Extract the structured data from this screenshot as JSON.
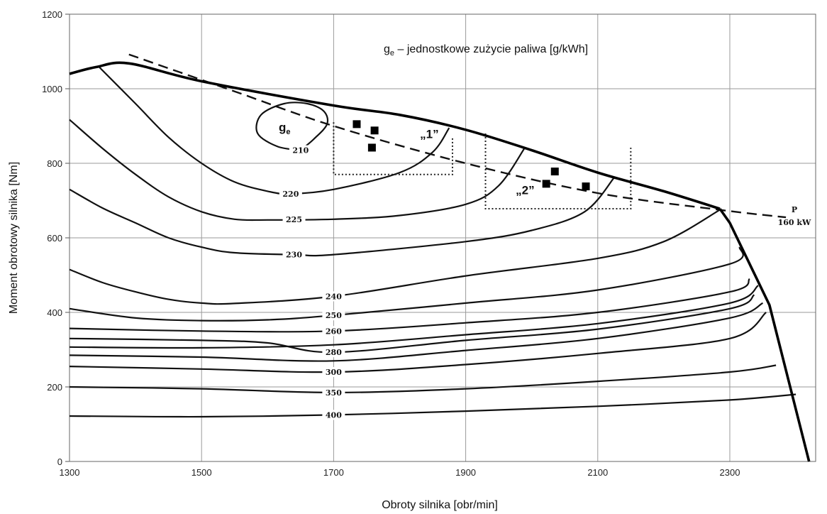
{
  "chart_data": {
    "type": "line",
    "xlabel": "Obroty silnika [obr/min]",
    "ylabel": "Moment obrotowy silnika [Nm]",
    "xlim": [
      1300,
      2430
    ],
    "ylim": [
      0,
      1200
    ],
    "x_ticks": [
      "1300",
      "1500",
      "1700",
      "1900",
      "2100",
      "2300"
    ],
    "y_ticks": [
      "0",
      "200",
      "400",
      "600",
      "800",
      "1000",
      "1200"
    ],
    "grid": true,
    "annotation_title": "jednostkowe zużycie paliwa [g/kWh]",
    "annotation_symbol": "g",
    "annotation_subscript": "e",
    "annotation_dash": " – ",
    "ge_label": "g",
    "ge_label_sub": "e",
    "power_label": "P",
    "power_value": "160 kW",
    "full_load_curve": [
      [
        1300,
        1040
      ],
      [
        1340,
        1058
      ],
      [
        1390,
        1068
      ],
      [
        1500,
        1020
      ],
      [
        1700,
        955
      ],
      [
        1800,
        930
      ],
      [
        1900,
        890
      ],
      [
        2000,
        835
      ],
      [
        2100,
        775
      ],
      [
        2200,
        725
      ],
      [
        2285,
        678
      ],
      [
        2300,
        640
      ],
      [
        2360,
        420
      ],
      [
        2420,
        0
      ]
    ],
    "power_curve": [
      [
        1390,
        1092
      ],
      [
        1550,
        993
      ],
      [
        1700,
        900
      ],
      [
        1900,
        800
      ],
      [
        2100,
        720
      ],
      [
        2285,
        675
      ],
      [
        2385,
        655
      ]
    ],
    "isolines": [
      {
        "label": "210",
        "label_x": 1650,
        "label_y": 835,
        "points": [
          [
            1650,
            835
          ],
          [
            1615,
            845
          ],
          [
            1585,
            880
          ],
          [
            1590,
            930
          ],
          [
            1625,
            960
          ],
          [
            1660,
            960
          ],
          [
            1685,
            940
          ],
          [
            1690,
            905
          ],
          [
            1670,
            865
          ],
          [
            1650,
            835
          ]
        ]
      },
      {
        "label": "220",
        "label_x": 1635,
        "label_y": 718,
        "points": [
          [
            1345,
            1058
          ],
          [
            1400,
            960
          ],
          [
            1450,
            870
          ],
          [
            1500,
            800
          ],
          [
            1550,
            750
          ],
          [
            1600,
            725
          ],
          [
            1635,
            718
          ],
          [
            1700,
            730
          ],
          [
            1800,
            775
          ],
          [
            1850,
            830
          ],
          [
            1875,
            895
          ]
        ]
      },
      {
        "label": "225",
        "label_x": 1640,
        "label_y": 650,
        "points": [
          [
            1300,
            917
          ],
          [
            1350,
            840
          ],
          [
            1400,
            770
          ],
          [
            1450,
            710
          ],
          [
            1500,
            670
          ],
          [
            1550,
            650
          ],
          [
            1600,
            648
          ],
          [
            1700,
            650
          ],
          [
            1800,
            660
          ],
          [
            1900,
            690
          ],
          [
            1950,
            740
          ],
          [
            1990,
            843
          ]
        ]
      },
      {
        "label": "230",
        "label_x": 1640,
        "label_y": 555,
        "points": [
          [
            1300,
            730
          ],
          [
            1350,
            680
          ],
          [
            1400,
            640
          ],
          [
            1450,
            600
          ],
          [
            1500,
            575
          ],
          [
            1550,
            560
          ],
          [
            1640,
            555
          ],
          [
            1700,
            555
          ],
          [
            1900,
            590
          ],
          [
            2000,
            620
          ],
          [
            2080,
            670
          ],
          [
            2125,
            762
          ]
        ]
      },
      {
        "label": "240",
        "label_x": 1700,
        "label_y": 443,
        "points": [
          [
            1300,
            515
          ],
          [
            1350,
            480
          ],
          [
            1400,
            455
          ],
          [
            1450,
            435
          ],
          [
            1500,
            425
          ],
          [
            1550,
            424
          ],
          [
            1700,
            443
          ],
          [
            1900,
            498
          ],
          [
            2100,
            545
          ],
          [
            2200,
            590
          ],
          [
            2285,
            675
          ]
        ]
      },
      {
        "label": "250",
        "label_x": 1700,
        "label_y": 392,
        "points": [
          [
            1300,
            410
          ],
          [
            1400,
            385
          ],
          [
            1500,
            378
          ],
          [
            1600,
            380
          ],
          [
            1700,
            392
          ],
          [
            1900,
            425
          ],
          [
            2100,
            460
          ],
          [
            2300,
            530
          ],
          [
            2315,
            575
          ]
        ]
      },
      {
        "label": "260",
        "label_x": 1700,
        "label_y": 350,
        "points": [
          [
            1300,
            357
          ],
          [
            1500,
            350
          ],
          [
            1700,
            350
          ],
          [
            1900,
            372
          ],
          [
            2100,
            400
          ],
          [
            2300,
            455
          ],
          [
            2330,
            490
          ]
        ]
      },
      {
        "label": "280",
        "label_x": 1700,
        "label_y": 293,
        "points": [
          [
            1300,
            330
          ],
          [
            1500,
            325
          ],
          [
            1600,
            318
          ],
          [
            1700,
            293
          ],
          [
            1900,
            325
          ],
          [
            2100,
            355
          ],
          [
            2300,
            410
          ],
          [
            2337,
            447
          ]
        ]
      },
      {
        "label": "",
        "label_x": 1700,
        "label_y": 313,
        "points": [
          [
            1300,
            307
          ],
          [
            1500,
            305
          ],
          [
            1700,
            313
          ],
          [
            1900,
            340
          ],
          [
            2100,
            370
          ],
          [
            2300,
            425
          ],
          [
            2343,
            472
          ]
        ]
      },
      {
        "label": "",
        "label_x": 1700,
        "label_y": 270,
        "points": [
          [
            1300,
            285
          ],
          [
            1500,
            280
          ],
          [
            1700,
            270
          ],
          [
            1900,
            298
          ],
          [
            2100,
            330
          ],
          [
            2300,
            385
          ],
          [
            2350,
            425
          ]
        ]
      },
      {
        "label": "300",
        "label_x": 1700,
        "label_y": 240,
        "points": [
          [
            1300,
            255
          ],
          [
            1500,
            248
          ],
          [
            1700,
            240
          ],
          [
            1900,
            260
          ],
          [
            2100,
            290
          ],
          [
            2300,
            330
          ],
          [
            2355,
            400
          ]
        ]
      },
      {
        "label": "350",
        "label_x": 1700,
        "label_y": 185,
        "points": [
          [
            1300,
            200
          ],
          [
            1500,
            195
          ],
          [
            1700,
            185
          ],
          [
            1900,
            195
          ],
          [
            2100,
            215
          ],
          [
            2300,
            240
          ],
          [
            2370,
            258
          ]
        ]
      },
      {
        "label": "400",
        "label_x": 1700,
        "label_y": 125,
        "points": [
          [
            1300,
            122
          ],
          [
            1500,
            120
          ],
          [
            1700,
            125
          ],
          [
            1900,
            135
          ],
          [
            2100,
            148
          ],
          [
            2300,
            165
          ],
          [
            2400,
            180
          ]
        ]
      }
    ],
    "regions": [
      {
        "label": "„1”",
        "label_x": 1845,
        "label_y": 868,
        "x0": 1700,
        "x1": 1880,
        "y0": 770,
        "y1": 910
      },
      {
        "label": "„2”",
        "label_x": 1990,
        "label_y": 717,
        "x0": 1930,
        "x1": 2150,
        "y0": 678,
        "y1": 880
      }
    ],
    "points": [
      [
        1735,
        905
      ],
      [
        1762,
        888
      ],
      [
        1758,
        842
      ],
      [
        2035,
        778
      ],
      [
        2022,
        745
      ],
      [
        2082,
        738
      ]
    ]
  }
}
